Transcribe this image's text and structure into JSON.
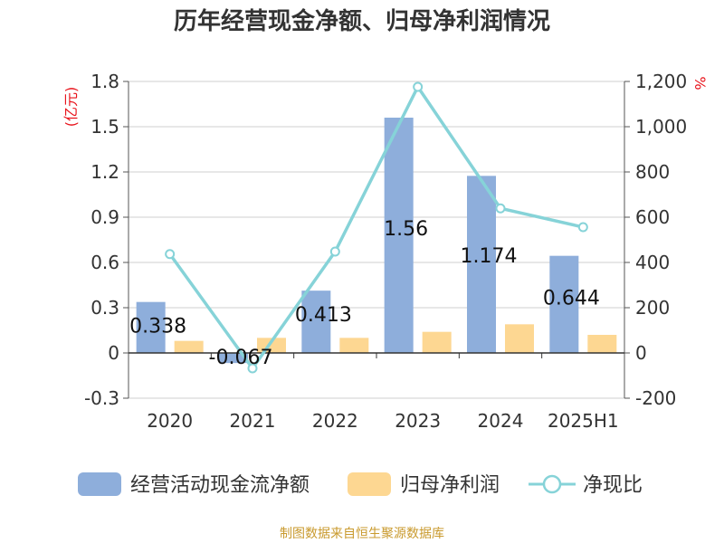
{
  "chart_data": {
    "type": "bar",
    "title": "历年经营现金净额、归母净利润情况",
    "categories": [
      "2020",
      "2021",
      "2022",
      "2023",
      "2024",
      "2025H1"
    ],
    "left_unit": "(亿元)",
    "right_unit": "%",
    "left_axis": {
      "min": -0.3,
      "max": 1.8,
      "ticks": [
        "-0.3",
        "0",
        "0.3",
        "0.6",
        "0.9",
        "1.2",
        "1.5",
        "1.8"
      ]
    },
    "right_axis": {
      "min": -200,
      "max": 1200,
      "ticks": [
        "-200",
        "0",
        "200",
        "400",
        "600",
        "800",
        "1,000",
        "1,200"
      ]
    },
    "grid": true,
    "legend_position": "bottom",
    "series": [
      {
        "name": "经营活动现金流净额",
        "type": "bar",
        "axis": "left",
        "color": "#8eaedb",
        "values": [
          0.338,
          -0.067,
          0.413,
          1.56,
          1.174,
          0.644
        ],
        "labels": [
          "0.338",
          "-0.067",
          "0.413",
          "1.56",
          "1.174",
          "0.644"
        ]
      },
      {
        "name": "归母净利润",
        "type": "bar",
        "axis": "left",
        "color": "#fdd792",
        "values": [
          0.08,
          0.1,
          0.1,
          0.14,
          0.19,
          0.12
        ]
      },
      {
        "name": "净现比",
        "type": "line",
        "axis": "right",
        "color": "#86d3d8",
        "values": [
          437,
          -68,
          448,
          1176,
          639,
          556
        ]
      }
    ],
    "source": "制图数据来自恒生聚源数据库"
  }
}
